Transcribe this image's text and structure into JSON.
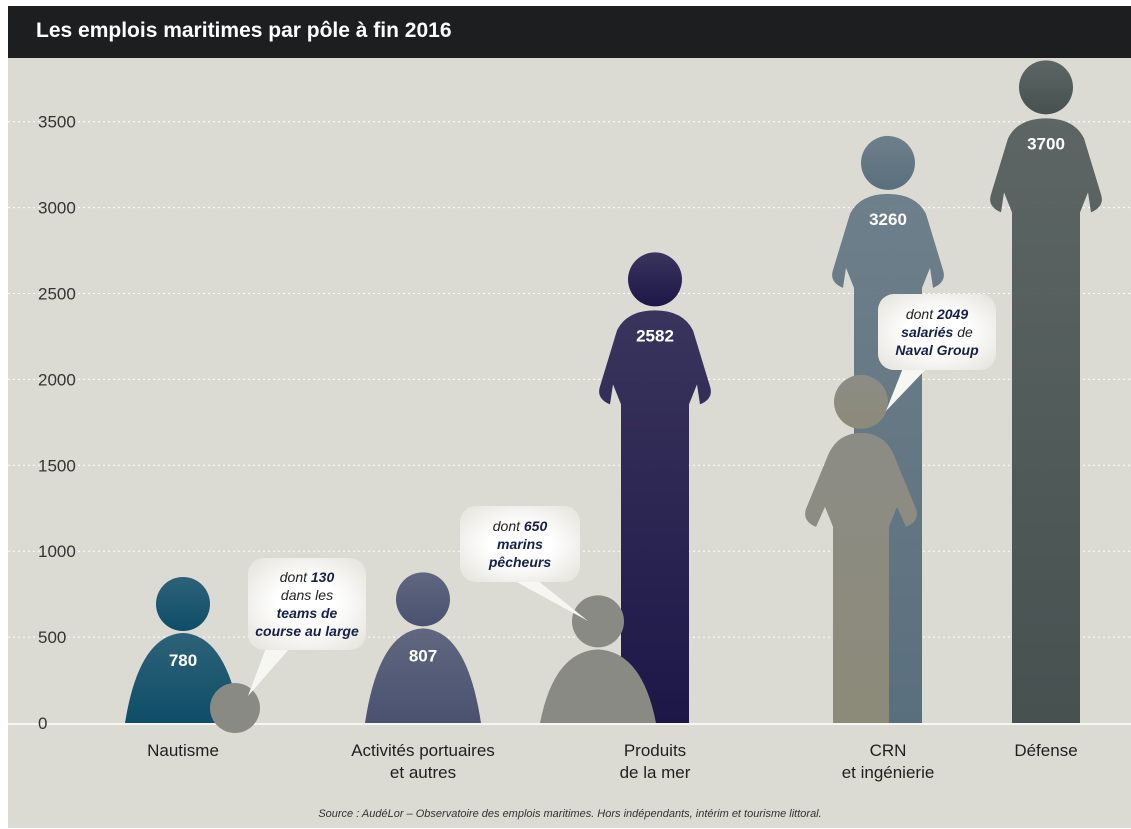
{
  "header": {
    "title": "Les emplois maritimes par pôle à fin 2016"
  },
  "source": "Source : AudéLor – Observatoire des emplois maritimes. Hors indépendants, intérim et tourisme littoral.",
  "chart_data": {
    "type": "bar",
    "title": "Les emplois maritimes par pôle à fin 2016",
    "xlabel": "",
    "ylabel": "",
    "ylim": [
      0,
      3700
    ],
    "yticks": [
      0,
      500,
      1000,
      1500,
      2000,
      2500,
      3000,
      3500
    ],
    "grid": true,
    "categories": [
      {
        "lines": [
          "Nautisme"
        ]
      },
      {
        "lines": [
          "Activités portuaires",
          "et autres"
        ]
      },
      {
        "lines": [
          "Produits",
          "de la mer"
        ]
      },
      {
        "lines": [
          "CRN",
          "et ingénierie"
        ]
      },
      {
        "lines": [
          "Défense"
        ]
      }
    ],
    "values": [
      780,
      807,
      2582,
      3260,
      3700
    ],
    "value_labels": [
      "780",
      "807",
      "2582",
      "3260",
      "3700"
    ],
    "colors": [
      "#0e4d68",
      "#4a5270",
      "#1d1748",
      "#5a6f7d",
      "#465150"
    ],
    "sub_values": [
      {
        "category_index": 0,
        "value": 130,
        "color": "#8a8a84",
        "callout": [
          [
            {
              "t": "dont ",
              "b": false
            },
            {
              "t": "130",
              "b": true
            }
          ],
          [
            {
              "t": "dans les",
              "b": false
            }
          ],
          [
            {
              "t": "teams de",
              "b": true
            }
          ],
          [
            {
              "t": "course au large",
              "b": true
            }
          ]
        ]
      },
      {
        "category_index": 2,
        "value": 650,
        "color": "#8a8a84",
        "callout": [
          [
            {
              "t": "dont ",
              "b": false
            },
            {
              "t": "650",
              "b": true
            }
          ],
          [
            {
              "t": "marins",
              "b": true
            }
          ],
          [
            {
              "t": "pêcheurs",
              "b": true
            }
          ]
        ]
      },
      {
        "category_index": 3,
        "value": 2049,
        "color": "#8a8a7c",
        "callout": [
          [
            {
              "t": "dont ",
              "b": false
            },
            {
              "t": "2049",
              "b": true
            }
          ],
          [
            {
              "t": "salariés",
              "b": true
            },
            {
              "t": " de",
              "b": false
            }
          ],
          [
            {
              "t": "Naval Group",
              "b": true
            }
          ]
        ]
      }
    ]
  }
}
